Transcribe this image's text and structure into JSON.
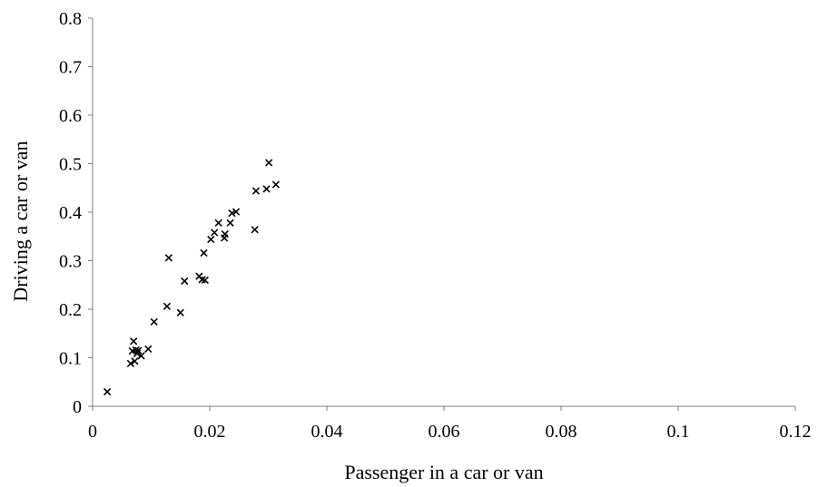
{
  "chart_data": {
    "type": "scatter",
    "title": "",
    "xlabel": "Passenger in a car or van",
    "ylabel": "Driving a car or van",
    "xlim": [
      0,
      0.12
    ],
    "ylim": [
      0,
      0.8
    ],
    "xticks": [
      0,
      0.02,
      0.04,
      0.06,
      0.08,
      0.1,
      0.12
    ],
    "xtick_labels": [
      "0",
      "0.02",
      "0.04",
      "0.06",
      "0.08",
      "0.1",
      "0.12"
    ],
    "yticks": [
      0,
      0.1,
      0.2,
      0.3,
      0.4,
      0.5,
      0.6,
      0.7,
      0.8
    ],
    "ytick_labels": [
      "0",
      "0.1",
      "0.2",
      "0.3",
      "0.4",
      "0.5",
      "0.6",
      "0.7",
      "0.8"
    ],
    "grid": false,
    "legend": "none",
    "marker": "x",
    "marker_color": "#000000",
    "axis_color": "#7f7f7f",
    "points": [
      {
        "x": 0.0025,
        "y": 0.03
      },
      {
        "x": 0.0065,
        "y": 0.088
      },
      {
        "x": 0.0068,
        "y": 0.114
      },
      {
        "x": 0.007,
        "y": 0.134
      },
      {
        "x": 0.0072,
        "y": 0.093
      },
      {
        "x": 0.0074,
        "y": 0.116
      },
      {
        "x": 0.0076,
        "y": 0.109
      },
      {
        "x": 0.0078,
        "y": 0.115
      },
      {
        "x": 0.0083,
        "y": 0.104
      },
      {
        "x": 0.0095,
        "y": 0.118
      },
      {
        "x": 0.0105,
        "y": 0.174
      },
      {
        "x": 0.0127,
        "y": 0.206
      },
      {
        "x": 0.013,
        "y": 0.306
      },
      {
        "x": 0.015,
        "y": 0.193
      },
      {
        "x": 0.0157,
        "y": 0.258
      },
      {
        "x": 0.0182,
        "y": 0.268
      },
      {
        "x": 0.0187,
        "y": 0.261
      },
      {
        "x": 0.019,
        "y": 0.316
      },
      {
        "x": 0.0192,
        "y": 0.26
      },
      {
        "x": 0.0202,
        "y": 0.344
      },
      {
        "x": 0.0208,
        "y": 0.358
      },
      {
        "x": 0.0215,
        "y": 0.378
      },
      {
        "x": 0.0225,
        "y": 0.347
      },
      {
        "x": 0.0226,
        "y": 0.355
      },
      {
        "x": 0.0235,
        "y": 0.378
      },
      {
        "x": 0.0238,
        "y": 0.398
      },
      {
        "x": 0.0245,
        "y": 0.401
      },
      {
        "x": 0.0277,
        "y": 0.364
      },
      {
        "x": 0.0279,
        "y": 0.444
      },
      {
        "x": 0.0297,
        "y": 0.448
      },
      {
        "x": 0.0301,
        "y": 0.502
      },
      {
        "x": 0.0313,
        "y": 0.457
      }
    ]
  }
}
